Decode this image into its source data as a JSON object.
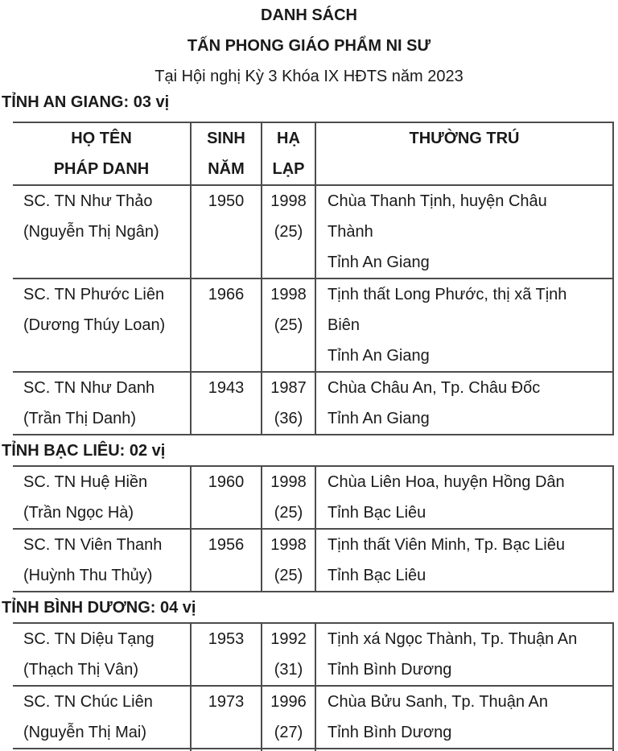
{
  "title": {
    "line1": "DANH SÁCH",
    "line2": "TẤN PHONG GIÁO PHẨM NI SƯ",
    "subtitle": "Tại Hội nghị Kỳ 3 Khóa IX HĐTS năm 2023"
  },
  "table_header": {
    "name": [
      "HỌ TÊN",
      "PHÁP DANH"
    ],
    "birth_year": [
      "SINH",
      "NĂM"
    ],
    "ha_lap": [
      "HẠ",
      "LẠP"
    ],
    "residence": [
      "THƯỜNG TRÚ"
    ]
  },
  "sections": [
    {
      "heading": "TỈNH AN GIANG: 03 vị",
      "rows": [
        {
          "name": [
            "SC. TN Như Thảo",
            "(Nguyễn Thị Ngân)"
          ],
          "birth_year": "1950",
          "ordination": [
            "1998",
            "(25)"
          ],
          "residence": [
            "Chùa Thanh Tịnh, huyện Châu",
            "Thành",
            "Tỉnh An Giang"
          ]
        },
        {
          "name": [
            "SC. TN Phước Liên",
            "(Dương Thúy Loan)"
          ],
          "birth_year": "1966",
          "ordination": [
            "1998",
            "(25)"
          ],
          "residence": [
            "Tịnh thất Long Phước, thị xã Tịnh",
            "Biên",
            "Tỉnh An Giang"
          ]
        },
        {
          "name": [
            "SC. TN Như Danh",
            "(Trần Thị Danh)"
          ],
          "birth_year": "1943",
          "ordination": [
            "1987",
            "(36)"
          ],
          "residence": [
            "Chùa Châu An, Tp. Châu Đốc",
            "Tỉnh An Giang"
          ]
        }
      ]
    },
    {
      "heading": "TỈNH BẠC LIÊU: 02 vị",
      "rows": [
        {
          "name": [
            "SC. TN Huệ Hiền",
            "(Trần Ngọc Hà)"
          ],
          "birth_year": "1960",
          "ordination": [
            "1998",
            "(25)"
          ],
          "residence": [
            "Chùa Liên Hoa, huyện Hồng Dân",
            "Tỉnh Bạc Liêu"
          ]
        },
        {
          "name": [
            "SC. TN Viên Thanh",
            "(Huỳnh Thu Thủy)"
          ],
          "birth_year": "1956",
          "ordination": [
            "1998",
            "(25)"
          ],
          "residence": [
            "Tịnh thất Viên Minh, Tp. Bạc Liêu",
            "Tỉnh Bạc Liêu"
          ]
        }
      ]
    },
    {
      "heading": "TỈNH BÌNH DƯƠNG: 04 vị",
      "truncated_next_row": true,
      "rows": [
        {
          "name": [
            "SC. TN Diệu Tạng",
            "(Thạch Thị Vân)"
          ],
          "birth_year": "1953",
          "ordination": [
            "1992",
            "(31)"
          ],
          "residence": [
            "Tịnh xá Ngọc Thành, Tp. Thuận An",
            "Tỉnh Bình Dương"
          ]
        },
        {
          "name": [
            "SC. TN Chúc Liên",
            "(Nguyễn Thị Mai)"
          ],
          "birth_year": "1973",
          "ordination": [
            "1996",
            "(27)"
          ],
          "residence": [
            "Chùa Bửu Sanh, Tp. Thuận An",
            "Tỉnh Bình Dương"
          ]
        }
      ]
    }
  ]
}
